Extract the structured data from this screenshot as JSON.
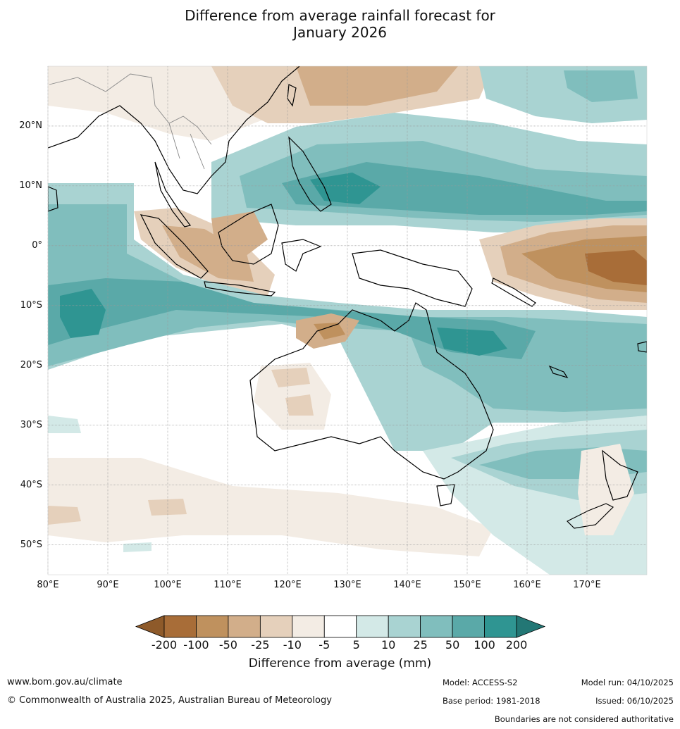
{
  "title_line1": "Difference from average rainfall forecast for",
  "title_line2": "January 2026",
  "map": {
    "lat_labels": [
      "20°N",
      "10°N",
      "0°",
      "10°S",
      "20°S",
      "30°S",
      "40°S",
      "50°S"
    ],
    "lat_values": [
      20,
      10,
      0,
      -10,
      -20,
      -30,
      -40,
      -50
    ],
    "lon_labels": [
      "80°E",
      "90°E",
      "100°E",
      "110°E",
      "120°E",
      "130°E",
      "140°E",
      "150°E",
      "160°E",
      "170°E"
    ],
    "lon_values": [
      80,
      90,
      100,
      110,
      120,
      130,
      140,
      150,
      160,
      170
    ],
    "lon_range": [
      80,
      180
    ],
    "lat_range": [
      -55,
      30
    ]
  },
  "colorbar": {
    "ticks": [
      "-200",
      "-100",
      "-50",
      "-25",
      "-10",
      "-5",
      "5",
      "10",
      "25",
      "50",
      "100",
      "200"
    ],
    "colors": [
      "#a86d38",
      "#bf915e",
      "#d2ae8a",
      "#e5d0bb",
      "#f3ece4",
      "#ffffff",
      "#d3e9e7",
      "#a9d3d2",
      "#80bebd",
      "#5aa9a8",
      "#2f9592"
    ],
    "under_color": "#8e5a2a",
    "over_color": "#237775",
    "label": "Difference from average (mm)"
  },
  "footer": {
    "website": "www.bom.gov.au/climate",
    "copyright": "© Commonwealth of Australia 2025, Australian Bureau of Meteorology",
    "model": "Model: ACCESS-S2",
    "base_period": "Base period: 1981-2018",
    "model_run": "Model run: 04/10/2025",
    "issued": "Issued: 06/10/2025",
    "disclaimer": "Boundaries are not considered authoritative"
  }
}
